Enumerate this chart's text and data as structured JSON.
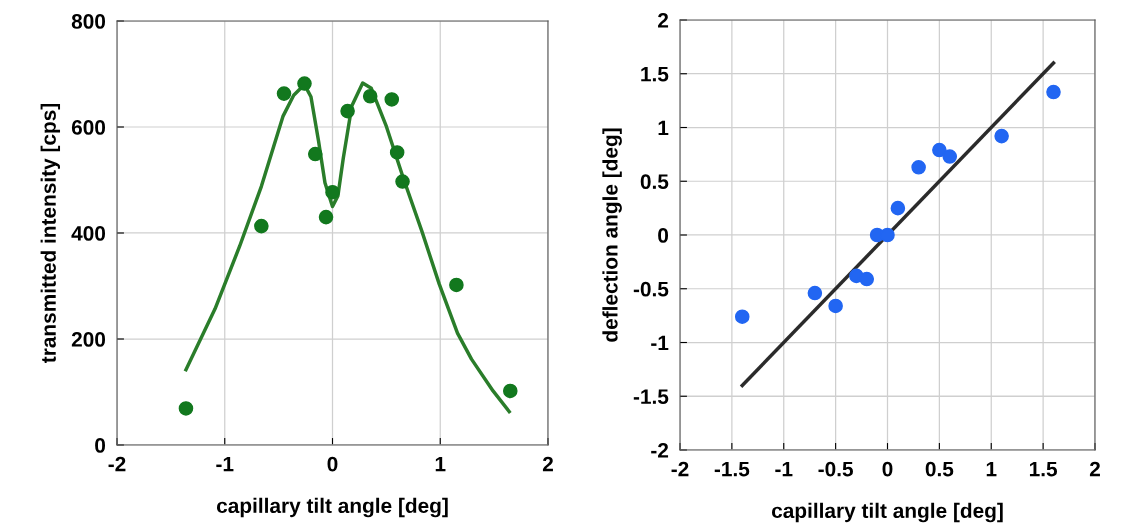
{
  "chart_data": [
    {
      "type": "scatter",
      "xlabel": "capillary tilt angle [deg]",
      "ylabel": "transmitted intensity [cps]",
      "xlim": [
        -2,
        2
      ],
      "ylim": [
        0,
        800
      ],
      "xticks": [
        -2,
        -1,
        0,
        1,
        2
      ],
      "yticks": [
        0,
        200,
        400,
        600,
        800
      ],
      "grid": true,
      "marker": "circle",
      "series": [
        {
          "color": "#12781e",
          "x": [
            -1.36,
            -0.66,
            -0.45,
            -0.26,
            -0.16,
            -0.06,
            0.0,
            0.14,
            0.35,
            0.55,
            0.6,
            0.65,
            1.15,
            1.65
          ],
          "values": [
            69,
            413,
            663,
            682,
            549,
            430,
            477,
            630,
            658,
            652,
            552,
            497,
            302,
            102
          ]
        },
        {
          "type": "line",
          "color": "#2a7d2a",
          "marker": "none",
          "line_style": "solid",
          "x": [
            -1.36,
            -1.09,
            -0.86,
            -0.66,
            -0.46,
            -0.36,
            -0.26,
            -0.2,
            -0.13,
            -0.07,
            0.0,
            0.05,
            0.1,
            0.18,
            0.28,
            0.36,
            0.5,
            0.66,
            0.83,
            0.99,
            1.16,
            1.29,
            1.49,
            1.64
          ],
          "values": [
            142,
            257,
            376,
            488,
            620,
            660,
            680,
            657,
            574,
            495,
            450,
            470,
            541,
            640,
            683,
            673,
            601,
            502,
            403,
            304,
            211,
            162,
            102,
            63
          ]
        }
      ]
    },
    {
      "type": "scatter",
      "xlabel": "capillary tilt angle [deg]",
      "ylabel": "deflection angle [deg]",
      "xlim": [
        -2,
        2
      ],
      "ylim": [
        -2,
        2
      ],
      "xticks": [
        -2,
        -1.5,
        -1,
        -0.5,
        0,
        0.5,
        1,
        1.5,
        2
      ],
      "yticks": [
        -2,
        -1.5,
        -1,
        -0.5,
        0,
        0.5,
        1,
        1.5,
        2
      ],
      "grid": true,
      "marker": "circle",
      "series": [
        {
          "color": "#2266f2",
          "x": [
            -1.4,
            -0.7,
            -0.5,
            -0.3,
            -0.2,
            -0.1,
            0.0,
            0.1,
            0.3,
            0.5,
            0.6,
            1.1,
            1.6
          ],
          "values": [
            -0.76,
            -0.54,
            -0.66,
            -0.38,
            -0.41,
            0.0,
            0.0,
            0.25,
            0.63,
            0.79,
            0.73,
            0.92,
            1.33
          ]
        },
        {
          "type": "line",
          "color": "#2b2b2b",
          "marker": "none",
          "line_style": "solid",
          "x": [
            -1.4,
            1.6
          ],
          "values": [
            -1.4,
            1.6
          ]
        }
      ]
    }
  ]
}
